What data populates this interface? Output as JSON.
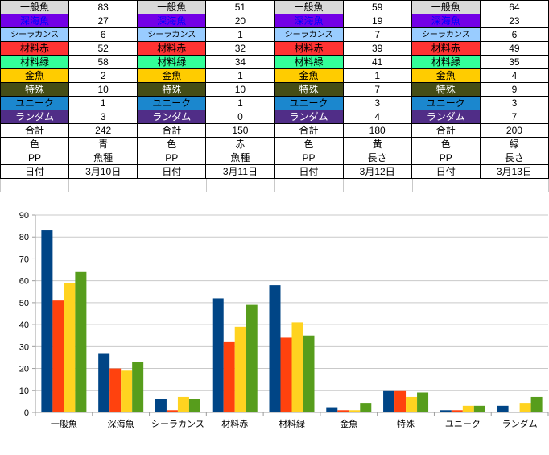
{
  "table": {
    "rows": [
      {
        "label": "一般魚",
        "values": [
          "83",
          "51",
          "59",
          "64"
        ],
        "bg": "#D9D9D9",
        "fg": "#000000"
      },
      {
        "label": "深海魚",
        "values": [
          "27",
          "20",
          "19",
          "23"
        ],
        "bg": "#7300E6",
        "fg": "#0000FF"
      },
      {
        "label": "シーラカンス",
        "values": [
          "6",
          "1",
          "7",
          "6"
        ],
        "bg": "#99CCFF",
        "fg": "#000000"
      },
      {
        "label": "材料赤",
        "values": [
          "52",
          "32",
          "39",
          "49"
        ],
        "bg": "#FF3333",
        "fg": "#000000"
      },
      {
        "label": "材料緑",
        "values": [
          "58",
          "34",
          "41",
          "35"
        ],
        "bg": "#33FF99",
        "fg": "#000000"
      },
      {
        "label": "金魚",
        "values": [
          "2",
          "1",
          "1",
          "4"
        ],
        "bg": "#FFCC00",
        "fg": "#000000"
      },
      {
        "label": "特殊",
        "values": [
          "10",
          "10",
          "7",
          "9"
        ],
        "bg": "#454D16",
        "fg": "#FFFFFF"
      },
      {
        "label": "ユニーク",
        "values": [
          "1",
          "1",
          "3",
          "3"
        ],
        "bg": "#1B87CE",
        "fg": "#000000"
      },
      {
        "label": "ランダム",
        "values": [
          "3",
          "0",
          "4",
          "7"
        ],
        "bg": "#502D87",
        "fg": "#FFFFFF"
      },
      {
        "label": "合計",
        "values": [
          "242",
          "150",
          "180",
          "200"
        ],
        "bg": "#FFFFFF",
        "fg": "#000000"
      },
      {
        "label": "色",
        "values": [
          "青",
          "赤",
          "黄",
          "緑"
        ],
        "bg": "#FFFFFF",
        "fg": "#000000"
      },
      {
        "label": "PP",
        "values": [
          "魚種",
          "魚種",
          "長さ",
          "長さ"
        ],
        "bg": "#FFFFFF",
        "fg": "#000000"
      },
      {
        "label": "日付",
        "values": [
          "3月10日",
          "3月11日",
          "3月12日",
          "3月13日"
        ],
        "bg": "#FFFFFF",
        "fg": "#000000"
      }
    ]
  },
  "chart_data": {
    "type": "bar",
    "title": "",
    "xlabel": "",
    "ylabel": "",
    "categories": [
      "一般魚",
      "深海魚",
      "シーラカンス",
      "材料赤",
      "材料緑",
      "金魚",
      "特殊",
      "ユニーク",
      "ランダム"
    ],
    "series": [
      {
        "name": "青",
        "color": "#004586",
        "values": [
          83,
          27,
          6,
          52,
          58,
          2,
          10,
          1,
          3
        ]
      },
      {
        "name": "赤",
        "color": "#FF420E",
        "values": [
          51,
          20,
          1,
          32,
          34,
          1,
          10,
          1,
          0
        ]
      },
      {
        "name": "黄",
        "color": "#FFD320",
        "values": [
          59,
          19,
          7,
          39,
          41,
          1,
          7,
          3,
          4
        ]
      },
      {
        "name": "緑",
        "color": "#579D1C",
        "values": [
          64,
          23,
          6,
          49,
          35,
          4,
          9,
          3,
          7
        ]
      }
    ],
    "ylim": [
      0,
      90
    ],
    "ytick_interval": 10,
    "grid": true,
    "legend": false,
    "gridline_color": "#C9C9C9",
    "axis_color": "#9C9C9C"
  }
}
